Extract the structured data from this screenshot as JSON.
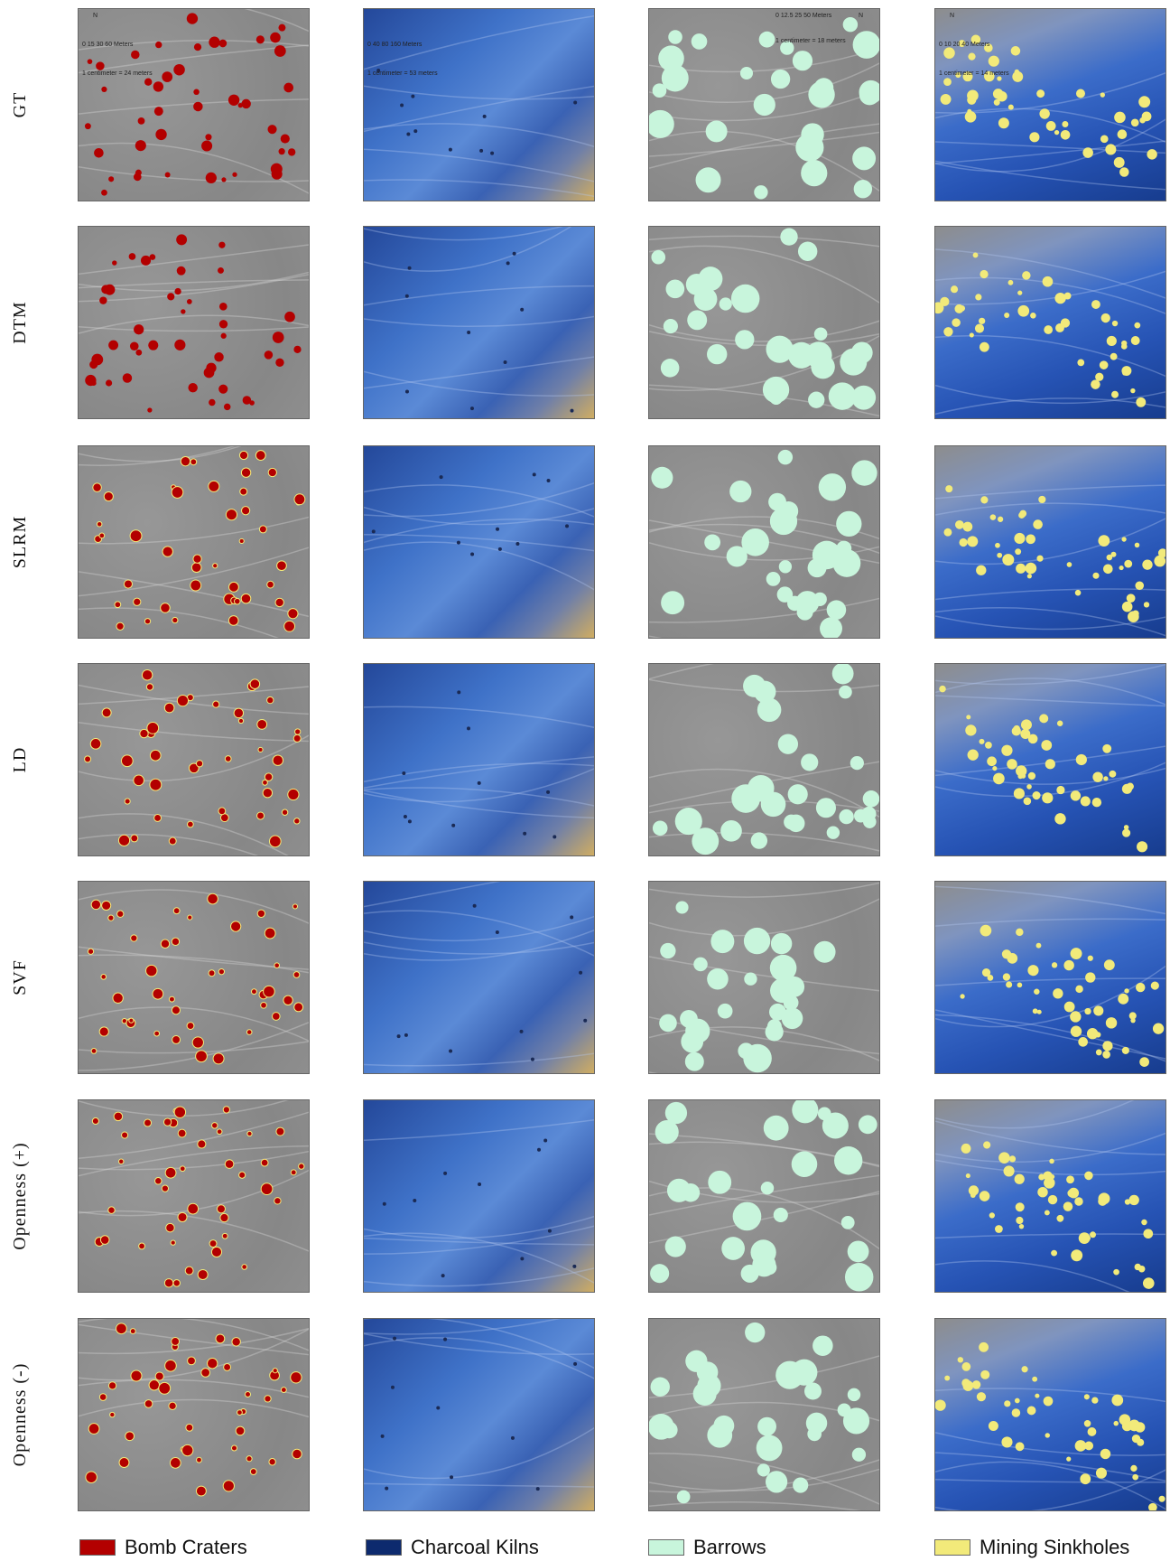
{
  "rows": [
    "GT",
    "DTM",
    "SLRM",
    "LD",
    "SVF",
    "Openness (+)",
    "Openness (-)"
  ],
  "scales": [
    {
      "bar": "0  15  30        60 Meters",
      "ratio": "1 centimeter = 24 meters"
    },
    {
      "bar": "0   40  80        160 Meters",
      "ratio": "1 centimeter = 53 meters"
    },
    {
      "bar": "0  12.5  25        50 Meters",
      "ratio": "1 centimeter = 18 meters"
    },
    {
      "bar": "0  10  20        40 Meters",
      "ratio": "1 centimeter = 14 meters"
    }
  ],
  "compass": "N",
  "legend": [
    {
      "label": "Bomb Craters",
      "color": "#b30000"
    },
    {
      "label": "Charcoal Kilns",
      "color": "#0d2a6e"
    },
    {
      "label": "Barrows",
      "color": "#c8f5dc"
    },
    {
      "label": "Mining Sinkholes",
      "color": "#f2ea7a"
    }
  ]
}
